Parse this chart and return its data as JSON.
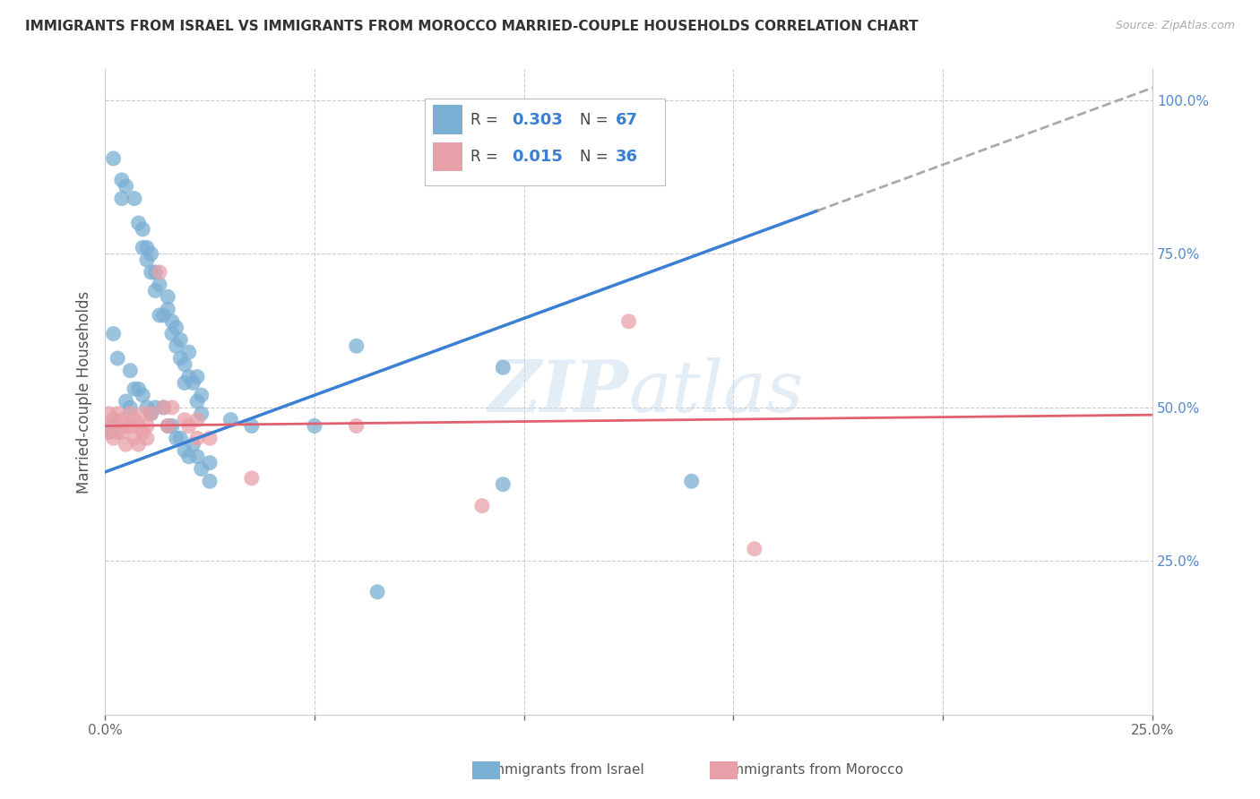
{
  "title": "IMMIGRANTS FROM ISRAEL VS IMMIGRANTS FROM MOROCCO MARRIED-COUPLE HOUSEHOLDS CORRELATION CHART",
  "source": "Source: ZipAtlas.com",
  "ylabel": "Married-couple Households",
  "xlim": [
    0.0,
    0.25
  ],
  "ylim": [
    0.0,
    1.05
  ],
  "color_israel": "#7bafd4",
  "color_morocco": "#e8a0a8",
  "color_israel_line": "#3a7fd4",
  "color_morocco_line": "#e06070",
  "color_israel_line_dash": "#aaaaaa",
  "watermark": "ZIPatlas",
  "legend_r1": "R = 0.303",
  "legend_n1": "N = 67",
  "legend_r2": "R = 0.015",
  "legend_n2": "N = 36",
  "israel_line_x0": 0.0,
  "israel_line_y0": 0.395,
  "israel_line_x1": 0.17,
  "israel_line_y1": 0.82,
  "israel_line_dash_x1": 0.25,
  "israel_line_dash_y1": 1.02,
  "morocco_line_x0": 0.0,
  "morocco_line_y0": 0.47,
  "morocco_line_x1": 0.25,
  "morocco_line_y1": 0.488,
  "israel_x": [
    0.002,
    0.004,
    0.004,
    0.005,
    0.007,
    0.008,
    0.009,
    0.009,
    0.01,
    0.01,
    0.011,
    0.011,
    0.012,
    0.012,
    0.013,
    0.013,
    0.014,
    0.015,
    0.015,
    0.016,
    0.016,
    0.017,
    0.017,
    0.018,
    0.018,
    0.019,
    0.019,
    0.02,
    0.02,
    0.021,
    0.022,
    0.022,
    0.023,
    0.023,
    0.002,
    0.003,
    0.005,
    0.006,
    0.006,
    0.007,
    0.008,
    0.009,
    0.01,
    0.011,
    0.012,
    0.014,
    0.015,
    0.016,
    0.017,
    0.018,
    0.019,
    0.02,
    0.021,
    0.022,
    0.023,
    0.025,
    0.025,
    0.03,
    0.035,
    0.05,
    0.06,
    0.065,
    0.095,
    0.095,
    0.14,
    0.002,
    0.001
  ],
  "israel_y": [
    0.905,
    0.87,
    0.84,
    0.86,
    0.84,
    0.8,
    0.79,
    0.76,
    0.76,
    0.74,
    0.75,
    0.72,
    0.72,
    0.69,
    0.7,
    0.65,
    0.65,
    0.66,
    0.68,
    0.64,
    0.62,
    0.63,
    0.6,
    0.61,
    0.58,
    0.57,
    0.54,
    0.55,
    0.59,
    0.54,
    0.55,
    0.51,
    0.52,
    0.49,
    0.62,
    0.58,
    0.51,
    0.5,
    0.56,
    0.53,
    0.53,
    0.52,
    0.5,
    0.49,
    0.5,
    0.5,
    0.47,
    0.47,
    0.45,
    0.45,
    0.43,
    0.42,
    0.44,
    0.42,
    0.4,
    0.41,
    0.38,
    0.48,
    0.47,
    0.47,
    0.6,
    0.2,
    0.565,
    0.375,
    0.38,
    0.47,
    0.46
  ],
  "morocco_x": [
    0.001,
    0.001,
    0.001,
    0.002,
    0.002,
    0.003,
    0.003,
    0.004,
    0.004,
    0.005,
    0.005,
    0.006,
    0.006,
    0.007,
    0.007,
    0.008,
    0.008,
    0.009,
    0.009,
    0.01,
    0.01,
    0.011,
    0.013,
    0.014,
    0.015,
    0.016,
    0.019,
    0.02,
    0.022,
    0.022,
    0.025,
    0.035,
    0.06,
    0.09,
    0.125,
    0.155
  ],
  "morocco_y": [
    0.49,
    0.47,
    0.46,
    0.48,
    0.45,
    0.49,
    0.46,
    0.48,
    0.46,
    0.47,
    0.44,
    0.49,
    0.47,
    0.48,
    0.45,
    0.47,
    0.44,
    0.49,
    0.46,
    0.47,
    0.45,
    0.49,
    0.72,
    0.5,
    0.47,
    0.5,
    0.48,
    0.47,
    0.48,
    0.45,
    0.45,
    0.385,
    0.47,
    0.34,
    0.64,
    0.27
  ]
}
